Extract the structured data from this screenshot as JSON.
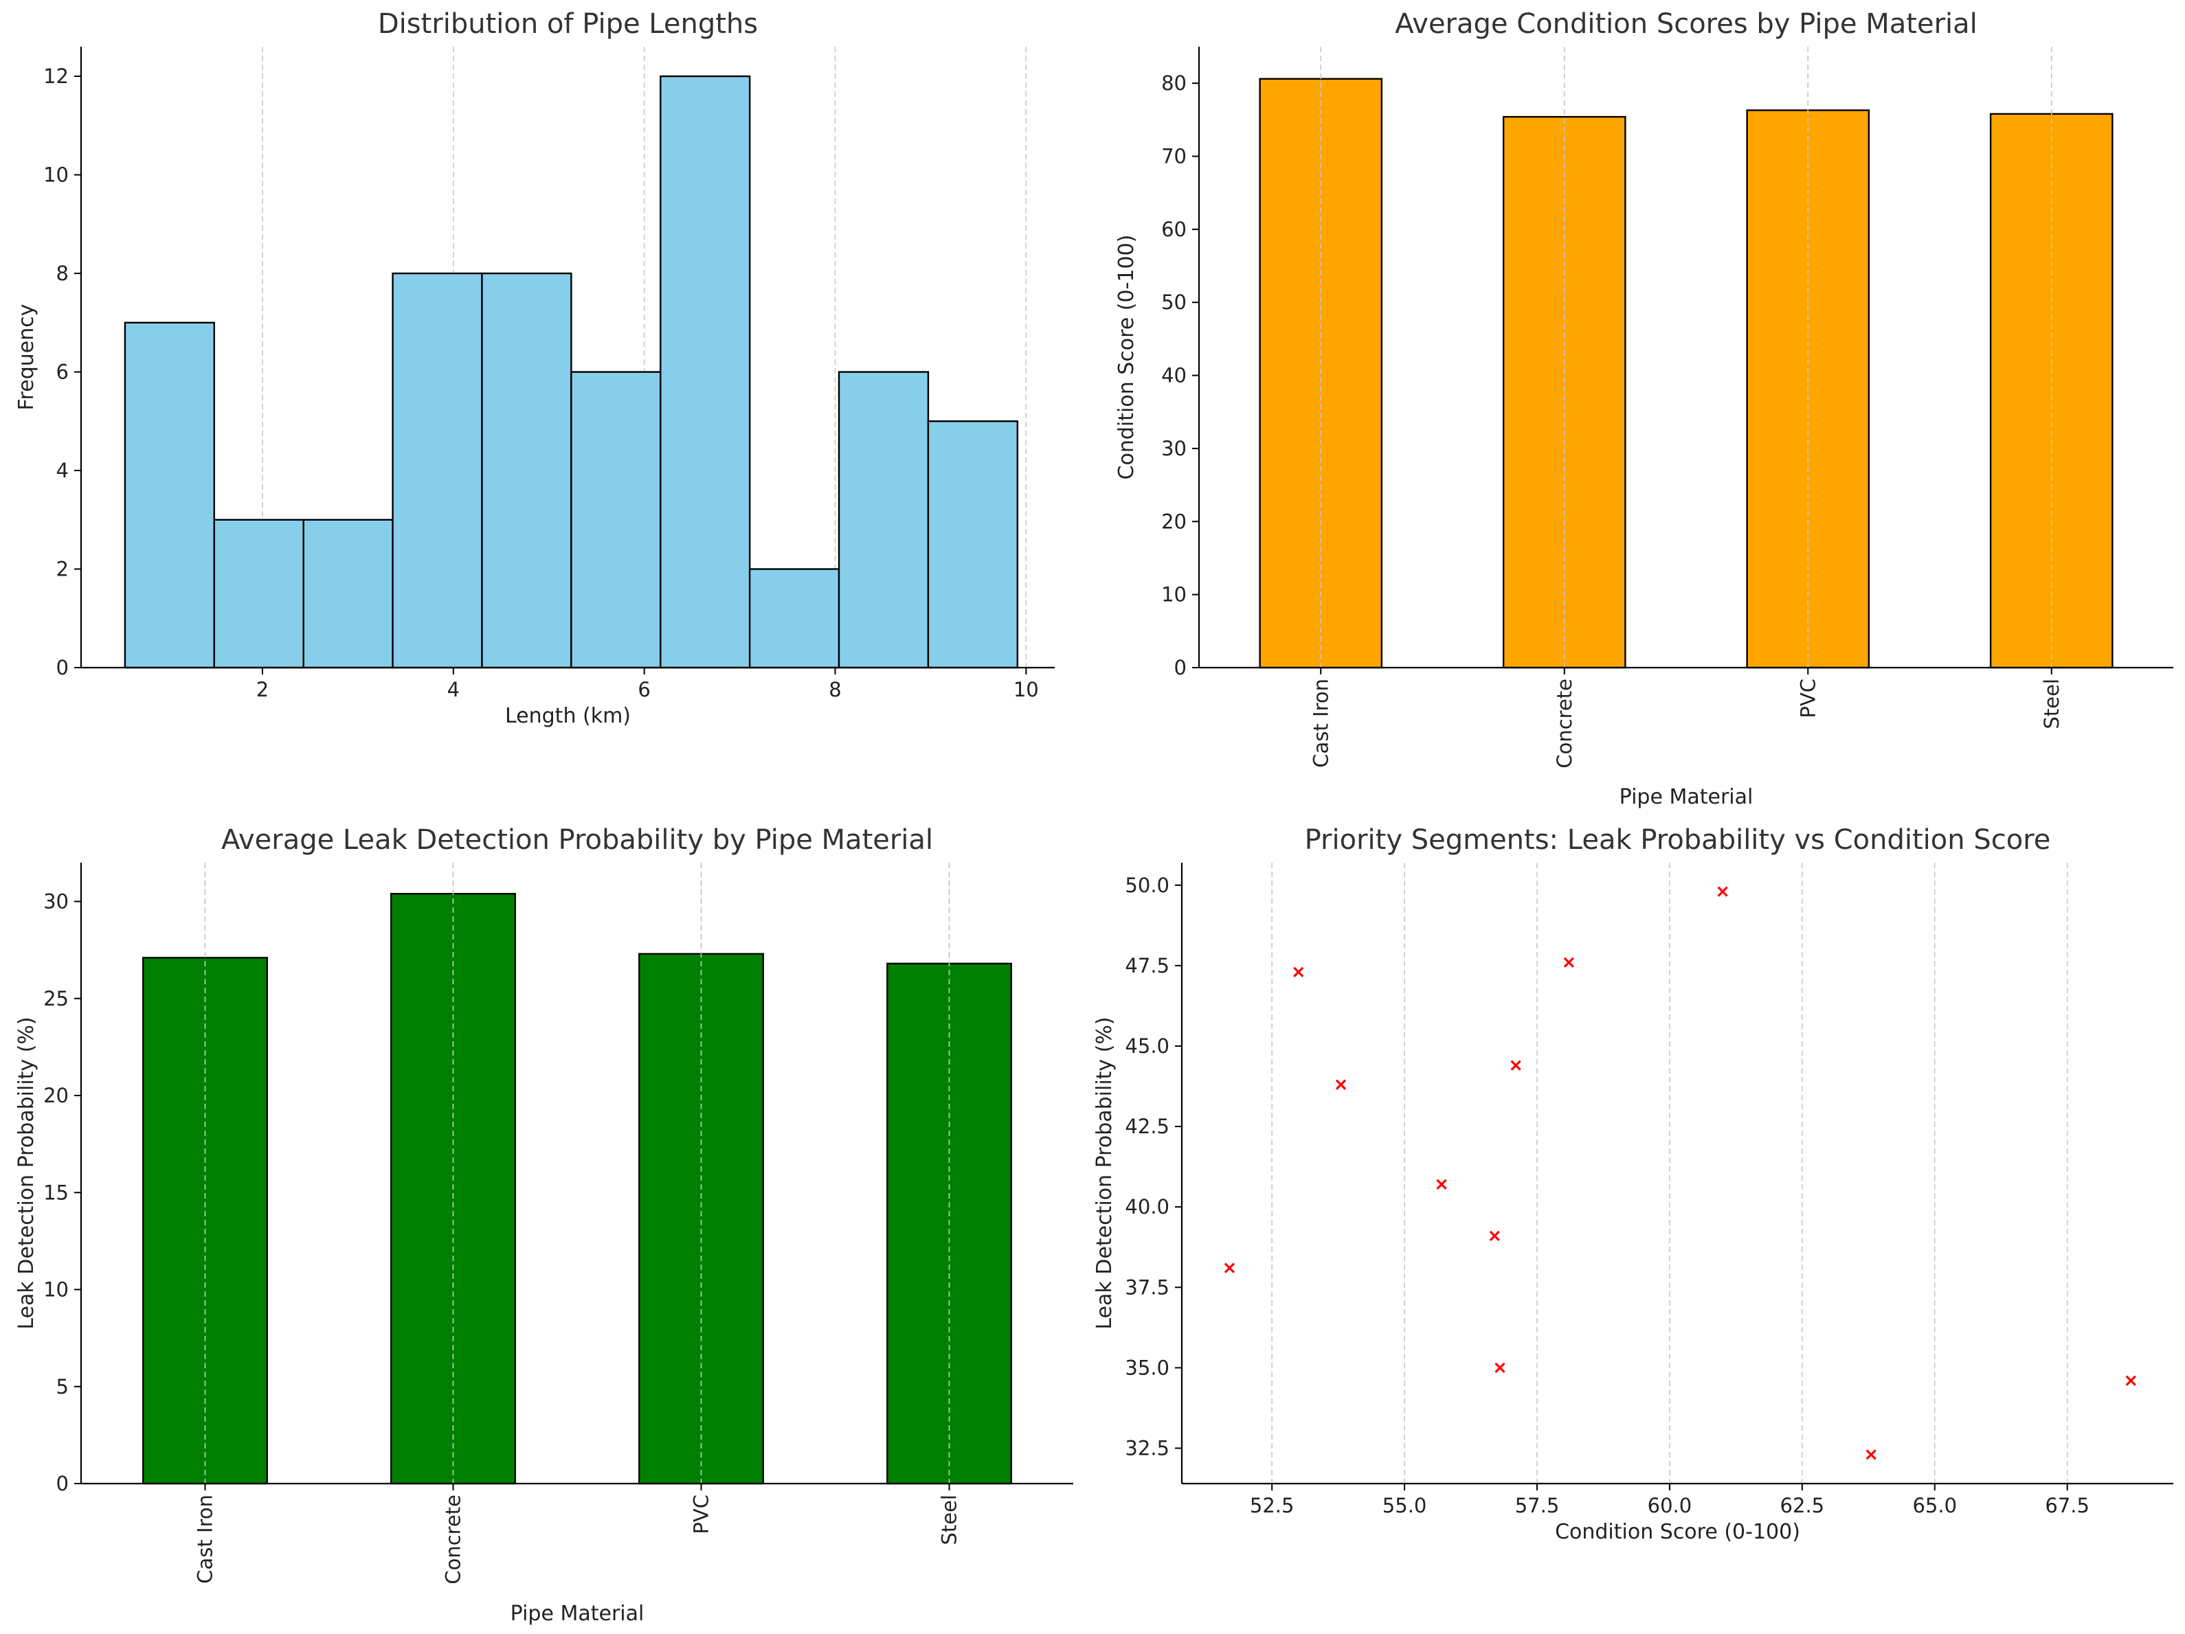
{
  "chart_data": [
    {
      "type": "bar",
      "subtype": "histogram",
      "title": "Distribution of Pipe Lengths",
      "xlabel": "Length (km)",
      "ylabel": "Frequency",
      "bin_edges": [
        0.56,
        1.495,
        2.43,
        3.365,
        4.3,
        5.235,
        6.17,
        7.105,
        8.04,
        8.975,
        9.91
      ],
      "values": [
        7,
        3,
        3,
        8,
        8,
        6,
        12,
        2,
        6,
        5
      ],
      "xlim": [
        0.1,
        10.3
      ],
      "ylim": [
        0,
        12.6
      ],
      "xticks": [
        2,
        4,
        6,
        8,
        10
      ],
      "yticks": [
        0,
        2,
        4,
        6,
        8,
        10,
        12
      ],
      "grid": "x dashed",
      "color": "#87CEEB"
    },
    {
      "type": "bar",
      "title": "Average Condition Scores by Pipe Material",
      "xlabel": "Pipe Material",
      "ylabel": "Condition Score (0-100)",
      "categories": [
        "Cast Iron",
        "Concrete",
        "PVC",
        "Steel"
      ],
      "values": [
        80.6,
        75.4,
        76.3,
        75.8
      ],
      "ylim": [
        0,
        85
      ],
      "yticks": [
        0,
        10,
        20,
        30,
        40,
        50,
        60,
        70,
        80
      ],
      "grid": "x dashed",
      "color": "#FFA500"
    },
    {
      "type": "bar",
      "title": "Average Leak Detection Probability by Pipe Material",
      "xlabel": "Pipe Material",
      "ylabel": "Leak Detection Probability (%)",
      "categories": [
        "Cast Iron",
        "Concrete",
        "PVC",
        "Steel"
      ],
      "values": [
        27.1,
        30.4,
        27.3,
        26.8
      ],
      "ylim": [
        0,
        32
      ],
      "yticks": [
        0,
        5,
        10,
        15,
        20,
        25,
        30
      ],
      "grid": "x dashed",
      "color": "#008000"
    },
    {
      "type": "scatter",
      "title": "Priority Segments: Leak Probability vs Condition Score",
      "xlabel": "Condition Score (0-100)",
      "ylabel": "Leak Detection Probability (%)",
      "x": [
        51.7,
        53.0,
        53.8,
        55.7,
        56.7,
        56.8,
        57.1,
        58.1,
        61.0,
        63.8,
        68.7
      ],
      "y": [
        38.1,
        47.3,
        43.8,
        40.7,
        39.1,
        35.0,
        44.4,
        47.6,
        49.8,
        32.3,
        34.6
      ],
      "xlim": [
        50.8,
        69.5
      ],
      "ylim": [
        31.4,
        50.7
      ],
      "xticks": [
        52.5,
        55.0,
        57.5,
        60.0,
        62.5,
        65.0,
        67.5
      ],
      "yticks": [
        32.5,
        35.0,
        37.5,
        40.0,
        42.5,
        45.0,
        47.5,
        50.0
      ],
      "marker": "x",
      "color": "#FF0000"
    }
  ]
}
